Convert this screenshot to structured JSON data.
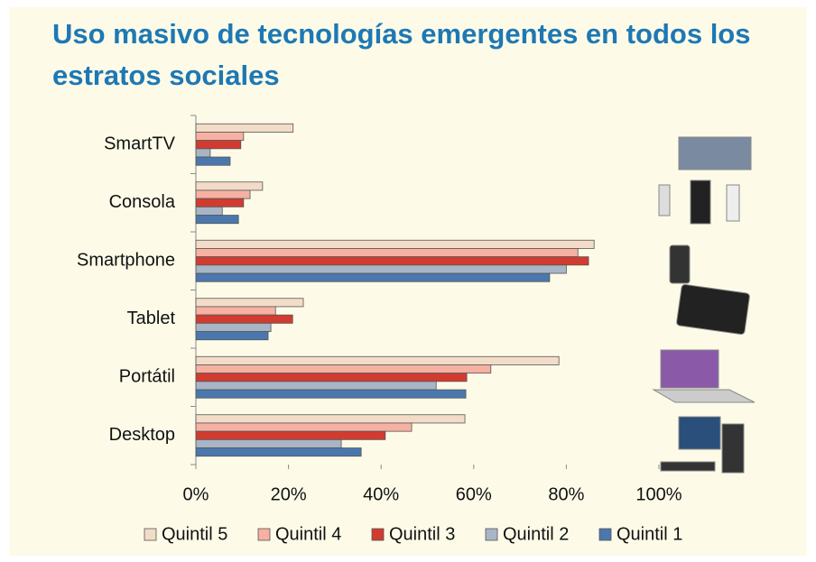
{
  "chart_data": {
    "type": "hbar",
    "title": [
      "Uso masivo de tecnologías emergentes en todos los",
      "estratos sociales"
    ],
    "categories": [
      "SmartTV",
      "Consola",
      "Smartphone",
      "Tablet",
      "Portátil",
      "Desktop"
    ],
    "series": [
      {
        "name": "Quintil 5",
        "color": "#f2dcc8",
        "values": [
          21,
          14.4,
          86,
          23.2,
          78.4,
          58.1
        ]
      },
      {
        "name": "Quintil 4",
        "color": "#f6b1a3",
        "values": [
          10.3,
          11.7,
          82.5,
          17.2,
          63.7,
          46.6
        ]
      },
      {
        "name": "Quintil 3",
        "color": "#d23b2f",
        "values": [
          9.7,
          10.3,
          84.8,
          20.9,
          58.5,
          40.9
        ]
      },
      {
        "name": "Quintil 2",
        "color": "#a8b5c6",
        "values": [
          3.1,
          5.7,
          80,
          16.2,
          51.9,
          31.4
        ]
      },
      {
        "name": "Quintil 1",
        "color": "#4a78ad",
        "values": [
          7.4,
          9.2,
          76.4,
          15.6,
          58.3,
          35.7
        ]
      }
    ],
    "xlim": [
      0,
      100
    ],
    "xticks": [
      {
        "value": 0,
        "label": "0%"
      },
      {
        "value": 20,
        "label": "20%"
      },
      {
        "value": 40,
        "label": "40%"
      },
      {
        "value": 60,
        "label": "60%"
      },
      {
        "value": 80,
        "label": "80%"
      },
      {
        "value": 100,
        "label": "100%"
      }
    ],
    "grid": false
  }
}
